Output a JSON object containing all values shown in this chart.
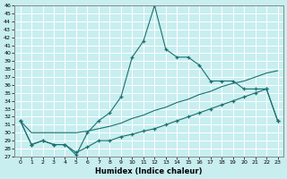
{
  "xlabel": "Humidex (Indice chaleur)",
  "bg_color": "#c8eef0",
  "grid_color": "#ffffff",
  "line_color": "#1a7070",
  "xlim": [
    -0.5,
    23.5
  ],
  "ylim": [
    27,
    46
  ],
  "yticks": [
    27,
    28,
    29,
    30,
    31,
    32,
    33,
    34,
    35,
    36,
    37,
    38,
    39,
    40,
    41,
    42,
    43,
    44,
    45,
    46
  ],
  "xticks": [
    0,
    1,
    2,
    3,
    4,
    5,
    6,
    7,
    8,
    9,
    10,
    11,
    12,
    13,
    14,
    15,
    16,
    17,
    18,
    19,
    20,
    21,
    22,
    23
  ],
  "line1_x": [
    0,
    1,
    2,
    3,
    4,
    5,
    6,
    7,
    8,
    9,
    10,
    11,
    12,
    13,
    14,
    15,
    16,
    17,
    18,
    19,
    20,
    21,
    22,
    23
  ],
  "line1_y": [
    31.5,
    28.5,
    29.0,
    28.5,
    28.5,
    27.2,
    30.0,
    31.5,
    32.5,
    34.5,
    39.5,
    41.5,
    46.0,
    40.5,
    39.5,
    39.5,
    38.5,
    36.5,
    36.5,
    36.5,
    35.5,
    35.5,
    35.5,
    31.5
  ],
  "line2_x": [
    0,
    1,
    2,
    3,
    4,
    5,
    6,
    7,
    8,
    9,
    10,
    11,
    12,
    13,
    14,
    15,
    16,
    17,
    18,
    19,
    20,
    21,
    22,
    23
  ],
  "line2_y": [
    31.5,
    30.0,
    30.0,
    30.0,
    30.0,
    30.0,
    30.2,
    30.5,
    30.8,
    31.2,
    31.8,
    32.2,
    32.8,
    33.2,
    33.8,
    34.2,
    34.8,
    35.2,
    35.8,
    36.2,
    36.5,
    37.0,
    37.5,
    37.8
  ],
  "line3_x": [
    0,
    1,
    2,
    3,
    4,
    5,
    6,
    7,
    8,
    9,
    10,
    11,
    12,
    13,
    14,
    15,
    16,
    17,
    18,
    19,
    20,
    21,
    22,
    23
  ],
  "line3_y": [
    31.5,
    28.5,
    29.0,
    28.5,
    28.5,
    27.5,
    28.2,
    29.0,
    29.0,
    29.5,
    29.8,
    30.2,
    30.5,
    31.0,
    31.5,
    32.0,
    32.5,
    33.0,
    33.5,
    34.0,
    34.5,
    35.0,
    35.5,
    31.5
  ]
}
